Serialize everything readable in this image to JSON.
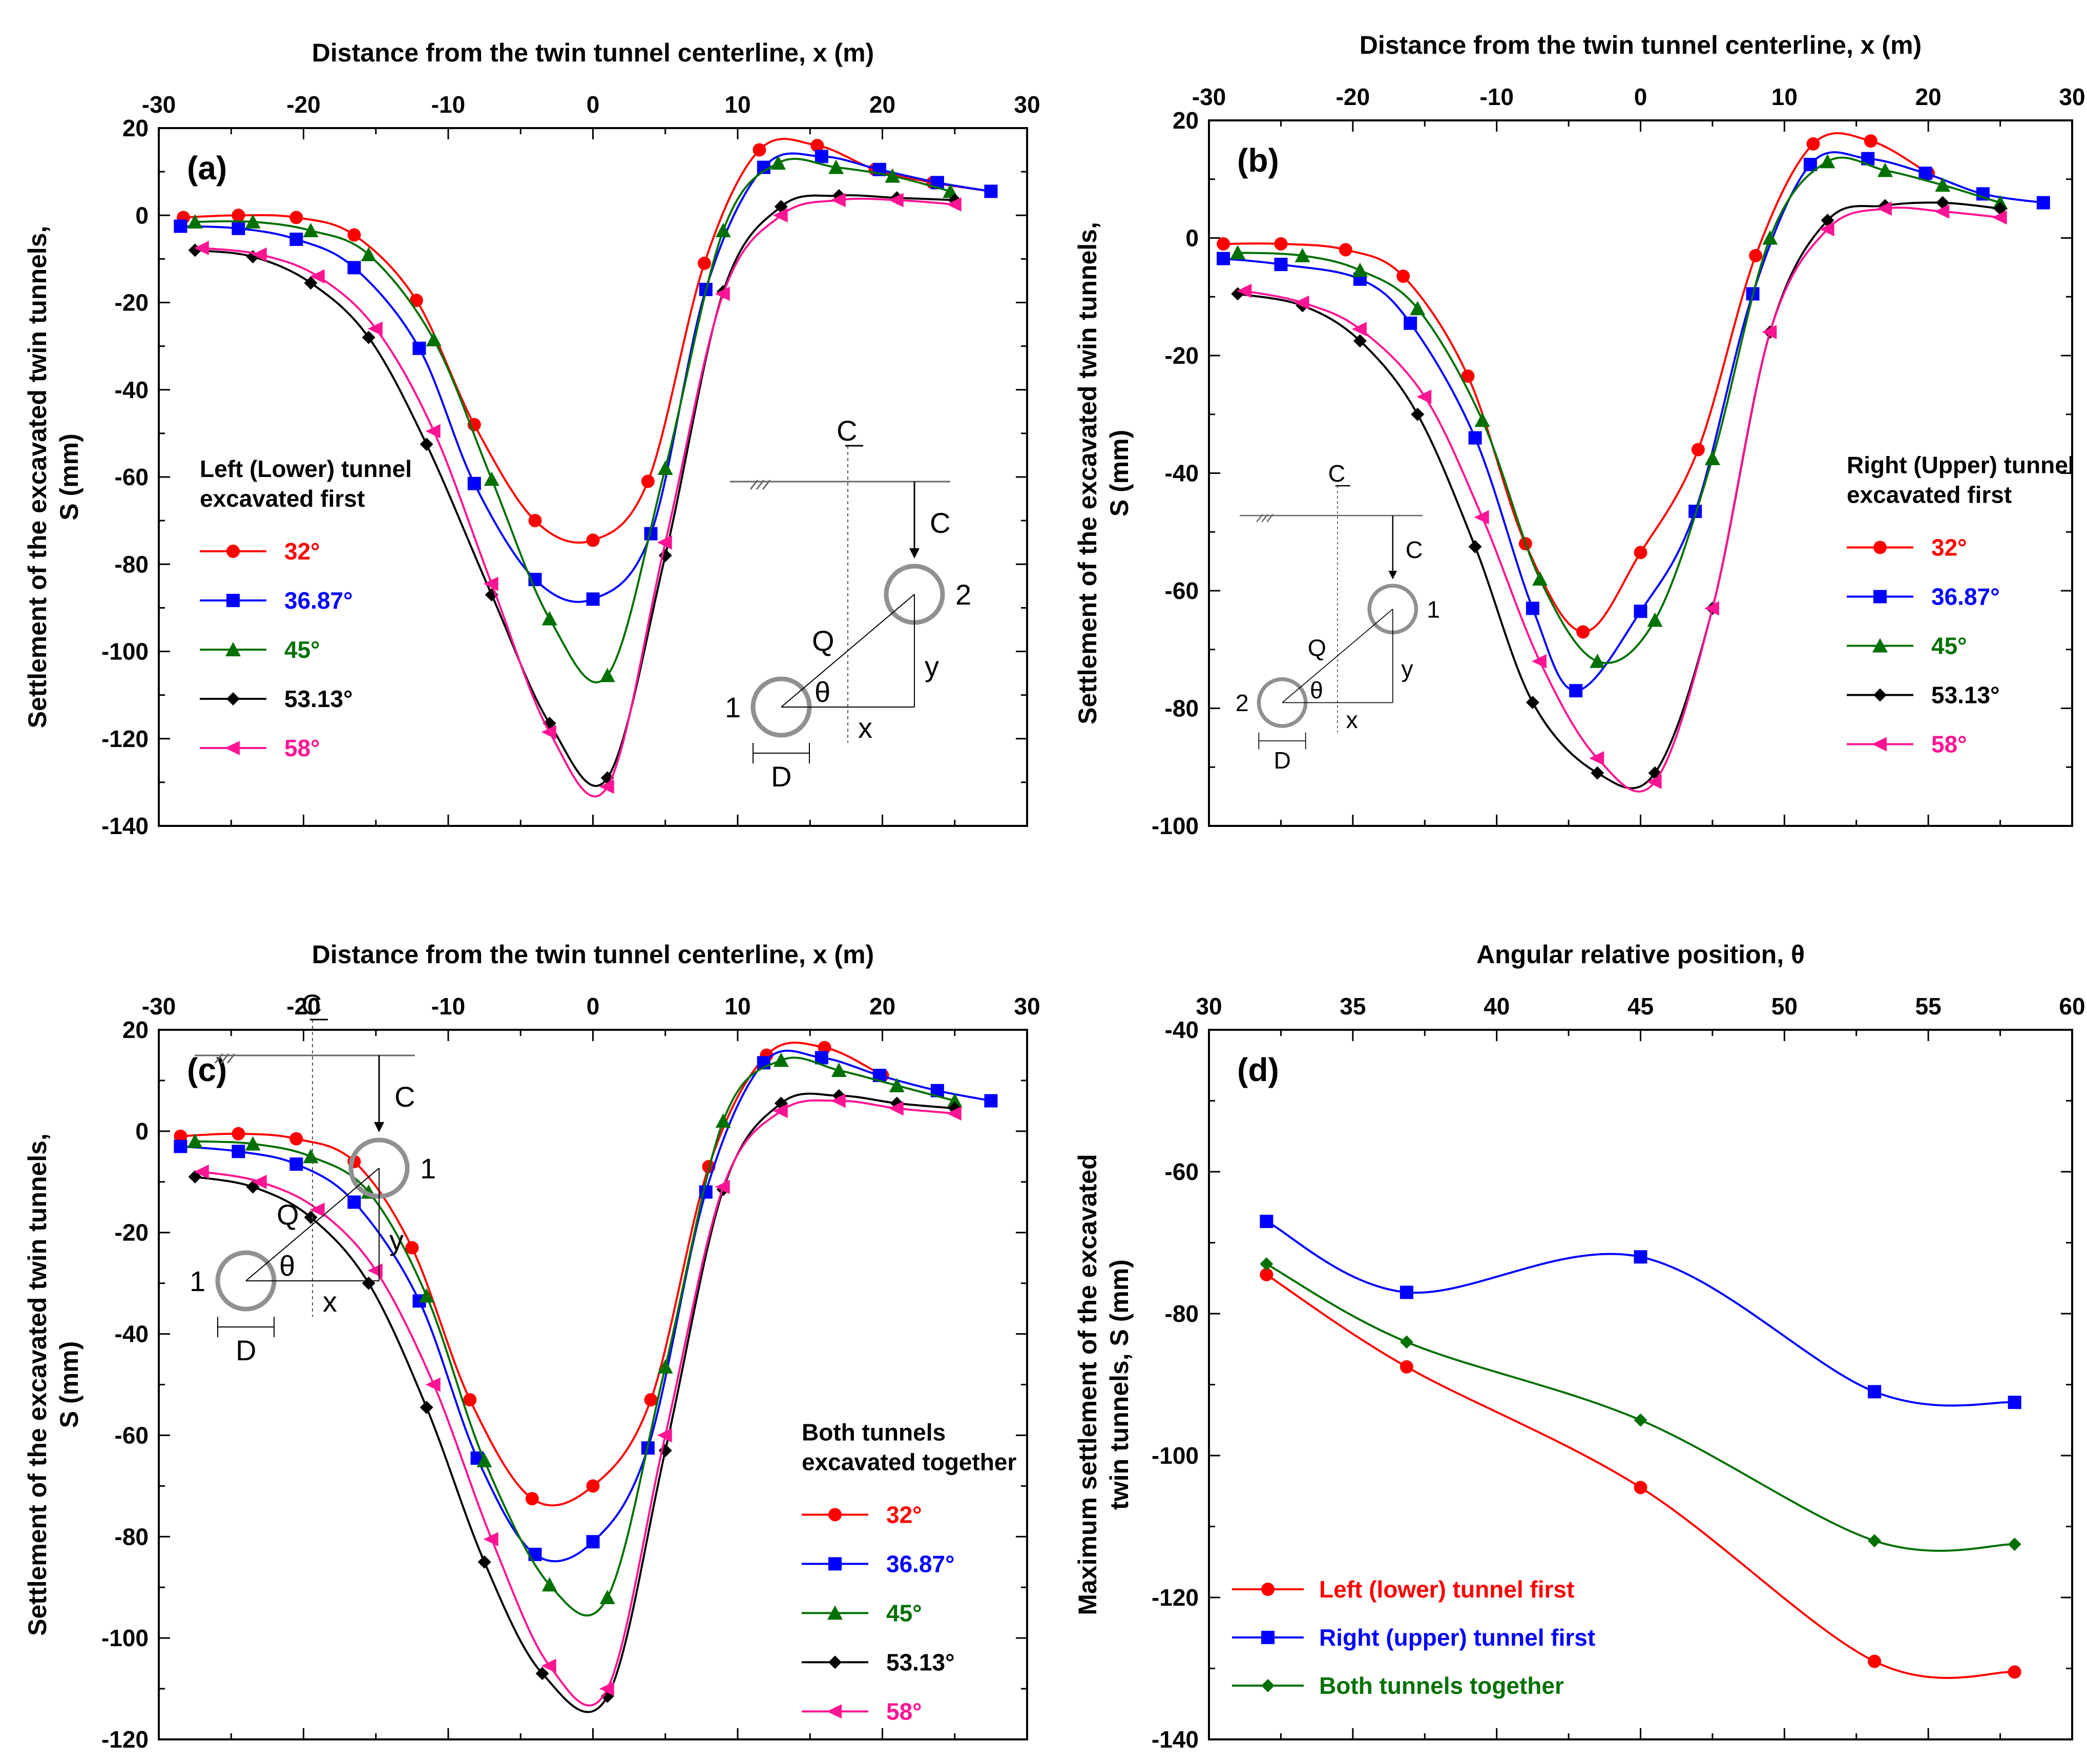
{
  "figure": {
    "panels": [
      {
        "label": "(a)",
        "x_title": "Distance from the twin tunnel centerline, x (m)",
        "y_title_line1": "Settlement of the excavated twin tunnels,",
        "y_title_line2": "S (mm)",
        "legend_title": [
          "Left (Lower) tunnel",
          "excavated first"
        ]
      },
      {
        "label": "(b)",
        "x_title": "Distance from the twin tunnel centerline, x (m)",
        "y_title_line1": "Settlement of the excavated twin tunnels,",
        "y_title_line2": "S (mm)",
        "legend_title": [
          "Right (Upper) tunnel",
          "excavated first"
        ]
      },
      {
        "label": "(c)",
        "x_title": "Distance from the twin tunnel centerline, x (m)",
        "y_title_line1": "Settlement of the excavated twin tunnels,",
        "y_title_line2": "S (mm)",
        "legend_title": [
          "Both tunnels",
          "excavated together"
        ]
      },
      {
        "label": "(d)",
        "x_title": "Angular relative position, θ",
        "y_title_line1": "Maximum settlement of the excavated",
        "y_title_line2": "twin tunnels, S (mm)",
        "legend_title": []
      }
    ],
    "diagram_labels": {
      "centerline": "CL",
      "cover": "C",
      "q": "Q",
      "theta": "θ",
      "x": "x",
      "y": "y",
      "d": "D"
    },
    "diagram_tunnel_numbers": [
      {
        "lower": "1",
        "upper": "2"
      },
      {
        "lower": "2",
        "upper": "1"
      },
      {
        "lower": "1",
        "upper": "1"
      }
    ],
    "colors": {
      "32": "#ff0000",
      "36.87": "#0000ff",
      "45": "#007000",
      "53.13": "#000000",
      "58": "#ff1493",
      "diagram": "#909090"
    }
  },
  "chart_data": [
    {
      "panel": "(a)",
      "type": "line",
      "title": "Left (Lower) tunnel excavated first",
      "xlabel": "Distance from the twin tunnel centerline, x (m)",
      "ylabel": "Settlement of the excavated twin tunnels, S (mm)",
      "xlim": [
        -30,
        30
      ],
      "ylim": [
        -140,
        20
      ],
      "xticks": [
        -30,
        -20,
        -10,
        0,
        10,
        20,
        30
      ],
      "yticks": [
        -140,
        -120,
        -100,
        -80,
        -60,
        -40,
        -20,
        0,
        20
      ],
      "series": [
        {
          "name": "32°",
          "color": "#ff0000",
          "marker": "circle",
          "x": [
            -28.3,
            -24.5,
            -20.5,
            -16.5,
            -12.2,
            -8.2,
            -4,
            0,
            3.8,
            7.7,
            11.5,
            15.5,
            19.5,
            23.5,
            27.5
          ],
          "y": [
            -0.5,
            0,
            -0.5,
            -4.5,
            -19.5,
            -48,
            -70,
            -74.5,
            -61,
            -11,
            15,
            16,
            10.5,
            7.5,
            5.5
          ]
        },
        {
          "name": "36.87°",
          "color": "#0000ff",
          "marker": "square",
          "x": [
            -28.5,
            -24.5,
            -20.5,
            -16.5,
            -12,
            -8.2,
            -4,
            0,
            4,
            7.8,
            11.8,
            15.8,
            19.8,
            23.8,
            27.5
          ],
          "y": [
            -2.5,
            -3,
            -5.5,
            -12,
            -30.5,
            -61.5,
            -83.5,
            -88,
            -73,
            -17,
            11,
            13.5,
            10.5,
            7.5,
            5.5
          ]
        },
        {
          "name": "45°",
          "color": "#007000",
          "marker": "triangle",
          "x": [
            -27.5,
            -23.5,
            -19.5,
            -15.5,
            -11,
            -7,
            -3,
            1,
            5,
            9,
            12.8,
            16.8,
            20.7,
            24.7
          ],
          "y": [
            -1.5,
            -1.5,
            -3.5,
            -9,
            -28.5,
            -60.5,
            -92.5,
            -105.5,
            -58,
            -3.5,
            12,
            11,
            9,
            5.5
          ]
        },
        {
          "name": "53.13°",
          "color": "#000000",
          "marker": "diamond",
          "x": [
            -27.5,
            -23.5,
            -19.5,
            -15.5,
            -11.5,
            -7,
            -3,
            1,
            5,
            9,
            13,
            17,
            21,
            25
          ],
          "y": [
            -8,
            -9.5,
            -15.5,
            -28,
            -52.5,
            -87,
            -116.5,
            -129,
            -78,
            -17.5,
            2,
            4.5,
            4,
            3.5
          ]
        },
        {
          "name": "58°",
          "color": "#ff1493",
          "marker": "triangle-left",
          "x": [
            -27,
            -23,
            -19,
            -15,
            -11,
            -7,
            -3,
            1,
            5,
            9,
            13,
            17,
            21,
            25
          ],
          "y": [
            -7.5,
            -9,
            -14,
            -26,
            -49.5,
            -84.5,
            -118.5,
            -131,
            -75,
            -18,
            0,
            3.5,
            3.5,
            2.5
          ]
        }
      ]
    },
    {
      "panel": "(b)",
      "type": "line",
      "title": "Right (Upper) tunnel excavated first",
      "xlabel": "Distance from the twin tunnel centerline, x (m)",
      "ylabel": "Settlement of the excavated twin tunnels, S (mm)",
      "xlim": [
        -30,
        30
      ],
      "ylim": [
        -100,
        20
      ],
      "xticks": [
        -30,
        -20,
        -10,
        0,
        10,
        20,
        30
      ],
      "yticks": [
        -100,
        -80,
        -60,
        -40,
        -20,
        0,
        20
      ],
      "series": [
        {
          "name": "32°",
          "color": "#ff0000",
          "marker": "circle",
          "x": [
            -29,
            -25,
            -20.5,
            -16.5,
            -12,
            -8,
            -4,
            0,
            4,
            8,
            12,
            16,
            20
          ],
          "y": [
            -1,
            -1,
            -2,
            -6.5,
            -23.5,
            -52,
            -67,
            -53.5,
            -36,
            -3,
            16,
            16.5,
            11
          ]
        },
        {
          "name": "36.87°",
          "color": "#0000ff",
          "marker": "square",
          "x": [
            -29,
            -25,
            -19.5,
            -16,
            -11.5,
            -7.5,
            -4.5,
            0,
            3.8,
            7.8,
            11.8,
            15.8,
            19.8,
            23.8,
            28
          ],
          "y": [
            -3.5,
            -4.5,
            -7,
            -14.5,
            -34,
            -63,
            -77,
            -63.5,
            -46.5,
            -9.5,
            12.5,
            13.5,
            11,
            7.5,
            6
          ]
        },
        {
          "name": "45°",
          "color": "#007000",
          "marker": "triangle",
          "x": [
            -28,
            -23.5,
            -19.5,
            -15.5,
            -11,
            -7,
            -3,
            1,
            5,
            9,
            13,
            17,
            21,
            25
          ],
          "y": [
            -2.5,
            -3,
            -5.5,
            -12,
            -31,
            -58,
            -72,
            -65,
            -37.5,
            0,
            13,
            11.5,
            9,
            6
          ]
        },
        {
          "name": "53.13°",
          "color": "#000000",
          "marker": "diamond",
          "x": [
            -28,
            -23.5,
            -19.5,
            -15.5,
            -11.5,
            -7.5,
            -3,
            1,
            5,
            9,
            13,
            17,
            21,
            25
          ],
          "y": [
            -9.5,
            -11.5,
            -17.5,
            -30,
            -52.5,
            -79,
            -91,
            -91,
            -63,
            -16,
            3,
            5.5,
            6,
            5
          ]
        },
        {
          "name": "58°",
          "color": "#ff1493",
          "marker": "triangle-left",
          "x": [
            -27.5,
            -23.5,
            -19.5,
            -15,
            -11,
            -7,
            -3,
            1,
            5,
            9,
            13,
            17,
            21,
            25
          ],
          "y": [
            -9,
            -11,
            -15.5,
            -27,
            -47.5,
            -72,
            -88.5,
            -92.5,
            -63,
            -16,
            1.5,
            5,
            4.5,
            3.5
          ]
        }
      ]
    },
    {
      "panel": "(c)",
      "type": "line",
      "title": "Both tunnels excavated together",
      "xlabel": "Distance from the twin tunnel centerline, x (m)",
      "ylabel": "Settlement of the excavated twin tunnels, S (mm)",
      "xlim": [
        -30,
        30
      ],
      "ylim": [
        -120,
        20
      ],
      "xticks": [
        -30,
        -20,
        -10,
        0,
        10,
        20,
        30
      ],
      "yticks": [
        -120,
        -100,
        -80,
        -60,
        -40,
        -20,
        0,
        20
      ],
      "series": [
        {
          "name": "32°",
          "color": "#ff0000",
          "marker": "circle",
          "x": [
            -28.5,
            -24.5,
            -20.5,
            -16.5,
            -12.5,
            -8.5,
            -4.2,
            0,
            4,
            8,
            12,
            16,
            20
          ],
          "y": [
            -1,
            -0.5,
            -1.5,
            -6,
            -23,
            -53,
            -72.5,
            -70,
            -53,
            -7,
            15,
            16.5,
            11
          ]
        },
        {
          "name": "36.87°",
          "color": "#0000ff",
          "marker": "square",
          "x": [
            -28.5,
            -24.5,
            -20.5,
            -16.5,
            -12,
            -8,
            -4,
            0,
            3.8,
            7.8,
            11.8,
            15.8,
            19.8,
            23.8,
            27.5
          ],
          "y": [
            -3,
            -4,
            -6.5,
            -14,
            -33.5,
            -64.5,
            -83.5,
            -81,
            -62.5,
            -12,
            13.5,
            14.5,
            11,
            8,
            6
          ]
        },
        {
          "name": "45°",
          "color": "#007000",
          "marker": "triangle",
          "x": [
            -27.5,
            -23.5,
            -19.5,
            -15.5,
            -11.5,
            -7.5,
            -3,
            1,
            5,
            9,
            13,
            17,
            21,
            25
          ],
          "y": [
            -2,
            -2.5,
            -5,
            -12,
            -32.5,
            -65,
            -89.5,
            -92,
            -46.5,
            2,
            14,
            12,
            9,
            6
          ]
        },
        {
          "name": "53.13°",
          "color": "#000000",
          "marker": "diamond",
          "x": [
            -27.5,
            -23.5,
            -19.5,
            -15.5,
            -11.5,
            -7.5,
            -3.5,
            1,
            5,
            9,
            13,
            17,
            21,
            25
          ],
          "y": [
            -9,
            -11,
            -17,
            -30,
            -54.5,
            -85,
            -107,
            -111.5,
            -63,
            -11.5,
            5.5,
            7,
            5.5,
            4.5
          ]
        },
        {
          "name": "58°",
          "color": "#ff1493",
          "marker": "triangle-left",
          "x": [
            -27,
            -23,
            -19,
            -15,
            -11,
            -7,
            -3,
            1,
            5,
            9,
            13,
            17,
            21,
            25
          ],
          "y": [
            -8,
            -10,
            -15.5,
            -27.5,
            -50,
            -80.5,
            -105.5,
            -110,
            -60,
            -11,
            4,
            6,
            4.5,
            3.5
          ]
        }
      ]
    },
    {
      "panel": "(d)",
      "type": "line",
      "title": "",
      "xlabel": "Angular relative position, θ",
      "ylabel": "Maximum settlement of the excavated twin tunnels, S (mm)",
      "xlim": [
        30,
        60
      ],
      "ylim": [
        -140,
        -40
      ],
      "xticks": [
        30,
        35,
        40,
        45,
        50,
        55,
        60
      ],
      "yticks": [
        -140,
        -120,
        -100,
        -80,
        -60,
        -40
      ],
      "series": [
        {
          "name": "Left (lower) tunnel first",
          "color": "#ff0000",
          "marker": "circle",
          "x": [
            32,
            36.87,
            45,
            53.13,
            58
          ],
          "y": [
            -74.5,
            -87.5,
            -104.5,
            -129,
            -130.5
          ]
        },
        {
          "name": "Right (upper) tunnel first",
          "color": "#0000ff",
          "marker": "square",
          "x": [
            32,
            36.87,
            45,
            53.13,
            58
          ],
          "y": [
            -67,
            -77,
            -72,
            -91,
            -92.5
          ]
        },
        {
          "name": "Both tunnels together",
          "color": "#007000",
          "marker": "diamond",
          "x": [
            32,
            36.87,
            45,
            53.13,
            58
          ],
          "y": [
            -73,
            -84,
            -95,
            -112,
            -112.5
          ]
        }
      ]
    }
  ]
}
